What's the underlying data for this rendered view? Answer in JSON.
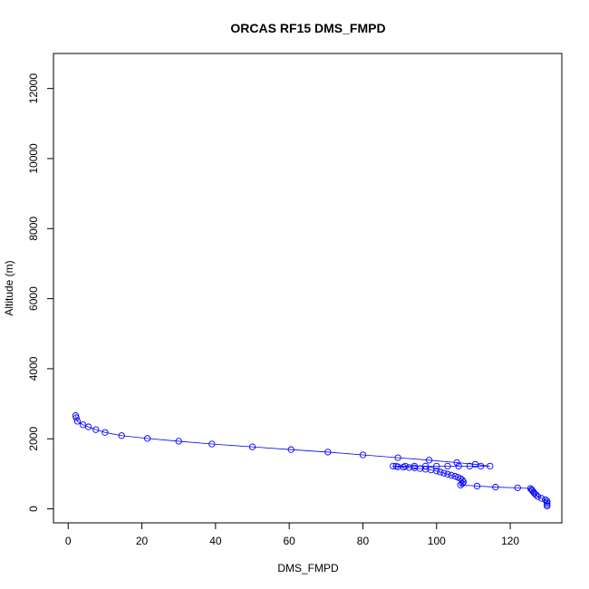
{
  "chart_data": {
    "type": "scatter",
    "title": "ORCAS RF15 DMS_FMPD",
    "xlabel": "DMS_FMPD",
    "ylabel": "Altitude (m)",
    "xlim": [
      -4,
      134
    ],
    "ylim": [
      -400,
      13000
    ],
    "xticks": [
      0,
      20,
      40,
      60,
      80,
      100,
      120
    ],
    "yticks": [
      0,
      2000,
      4000,
      6000,
      8000,
      10000,
      12000
    ],
    "grid": false,
    "color": "#0000ff",
    "series": [
      {
        "x": [
          2.0,
          2.2,
          2.5,
          4.0,
          5.5,
          7.5,
          10.0,
          14.5,
          21.5,
          30.0,
          39.0,
          50.0,
          60.5,
          70.5,
          80.0,
          89.5,
          98.0,
          105.5,
          110.5,
          114.5,
          112.0,
          109.0,
          106.0,
          103.0,
          100.0,
          97.0,
          94.0,
          91.5,
          89.0,
          88.2,
          89.5,
          91.0,
          92.5,
          94.0,
          95.5,
          97.0,
          98.5,
          100.0,
          101.0,
          102.0,
          103.0,
          104.0,
          105.0,
          105.8,
          106.5,
          107.0,
          107.3,
          107.0,
          106.5,
          111.0,
          116.0,
          122.0,
          125.5,
          125.8,
          126.0,
          126.3,
          126.6,
          127.0,
          127.5,
          128.5,
          129.5,
          130.0,
          130.0,
          130.0,
          130.0
        ],
        "y": [
          2660,
          2600,
          2500,
          2400,
          2340,
          2260,
          2180,
          2090,
          2010,
          1930,
          1850,
          1770,
          1690,
          1620,
          1540,
          1460,
          1390,
          1320,
          1270,
          1220,
          1220,
          1220,
          1220,
          1220,
          1220,
          1220,
          1220,
          1220,
          1220,
          1220,
          1200,
          1190,
          1180,
          1170,
          1150,
          1130,
          1110,
          1080,
          1050,
          1020,
          990,
          960,
          930,
          900,
          860,
          820,
          770,
          720,
          680,
          650,
          620,
          600,
          580,
          550,
          520,
          480,
          440,
          400,
          350,
          300,
          260,
          220,
          170,
          120,
          80
        ]
      }
    ]
  }
}
